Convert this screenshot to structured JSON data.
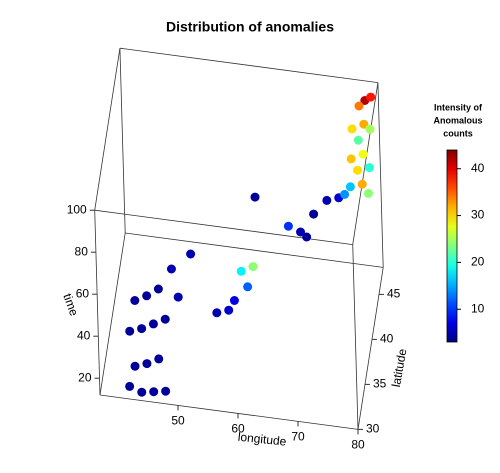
{
  "chart_data": {
    "type": "scatter3d",
    "title": "Distribution of anomalies",
    "xlabel": "longitude",
    "ylabel": "latitude",
    "zlabel": "time",
    "colorbar_title": [
      "Intensity of",
      "Anomalous",
      "counts"
    ],
    "xlim": [
      37,
      80
    ],
    "ylim": [
      30,
      48
    ],
    "zlim": [
      12,
      100
    ],
    "clim": [
      3,
      44
    ],
    "xticks": [
      50,
      60,
      70,
      80
    ],
    "yticks": [
      30,
      35,
      40,
      45
    ],
    "zticks": [
      20,
      40,
      60,
      80,
      100
    ],
    "cticks": [
      10,
      20,
      30,
      40
    ],
    "colormap": "jet",
    "x": [
      42,
      44,
      46,
      48,
      43,
      45,
      47,
      42,
      44,
      46,
      48,
      43,
      45,
      47,
      50,
      49,
      52,
      57,
      58,
      60,
      59,
      61,
      55,
      78,
      79,
      77,
      78,
      76,
      79,
      77,
      78,
      76,
      79,
      77,
      78,
      76,
      79,
      74,
      72,
      70,
      68,
      69,
      66,
      60,
      75
    ],
    "y": [
      30,
      30,
      30,
      30,
      30,
      30,
      30,
      31,
      31,
      31,
      31,
      31,
      31,
      31,
      32,
      32,
      33,
      37,
      37,
      38,
      38,
      38,
      37,
      47,
      47,
      47,
      46,
      46,
      46,
      46,
      45,
      45,
      45,
      45,
      44,
      44,
      44,
      44,
      44,
      43,
      42,
      42,
      42,
      44,
      44
    ],
    "z": [
      18,
      16,
      17,
      18,
      28,
      30,
      33,
      40,
      42,
      45,
      48,
      55,
      58,
      62,
      55,
      68,
      72,
      30,
      35,
      38,
      45,
      48,
      28,
      95,
      97,
      92,
      88,
      85,
      86,
      80,
      78,
      75,
      72,
      70,
      68,
      66,
      64,
      60,
      58,
      55,
      50,
      48,
      52,
      55,
      62
    ],
    "c": [
      4,
      4,
      4,
      4,
      4,
      4,
      4,
      4,
      4,
      4,
      4,
      4,
      4,
      4,
      5,
      5,
      5,
      6,
      7,
      12,
      18,
      24,
      5,
      42,
      38,
      34,
      32,
      30,
      25,
      22,
      28,
      31,
      20,
      30,
      32,
      16,
      24,
      6,
      5,
      4,
      5,
      4,
      10,
      4,
      14
    ]
  }
}
